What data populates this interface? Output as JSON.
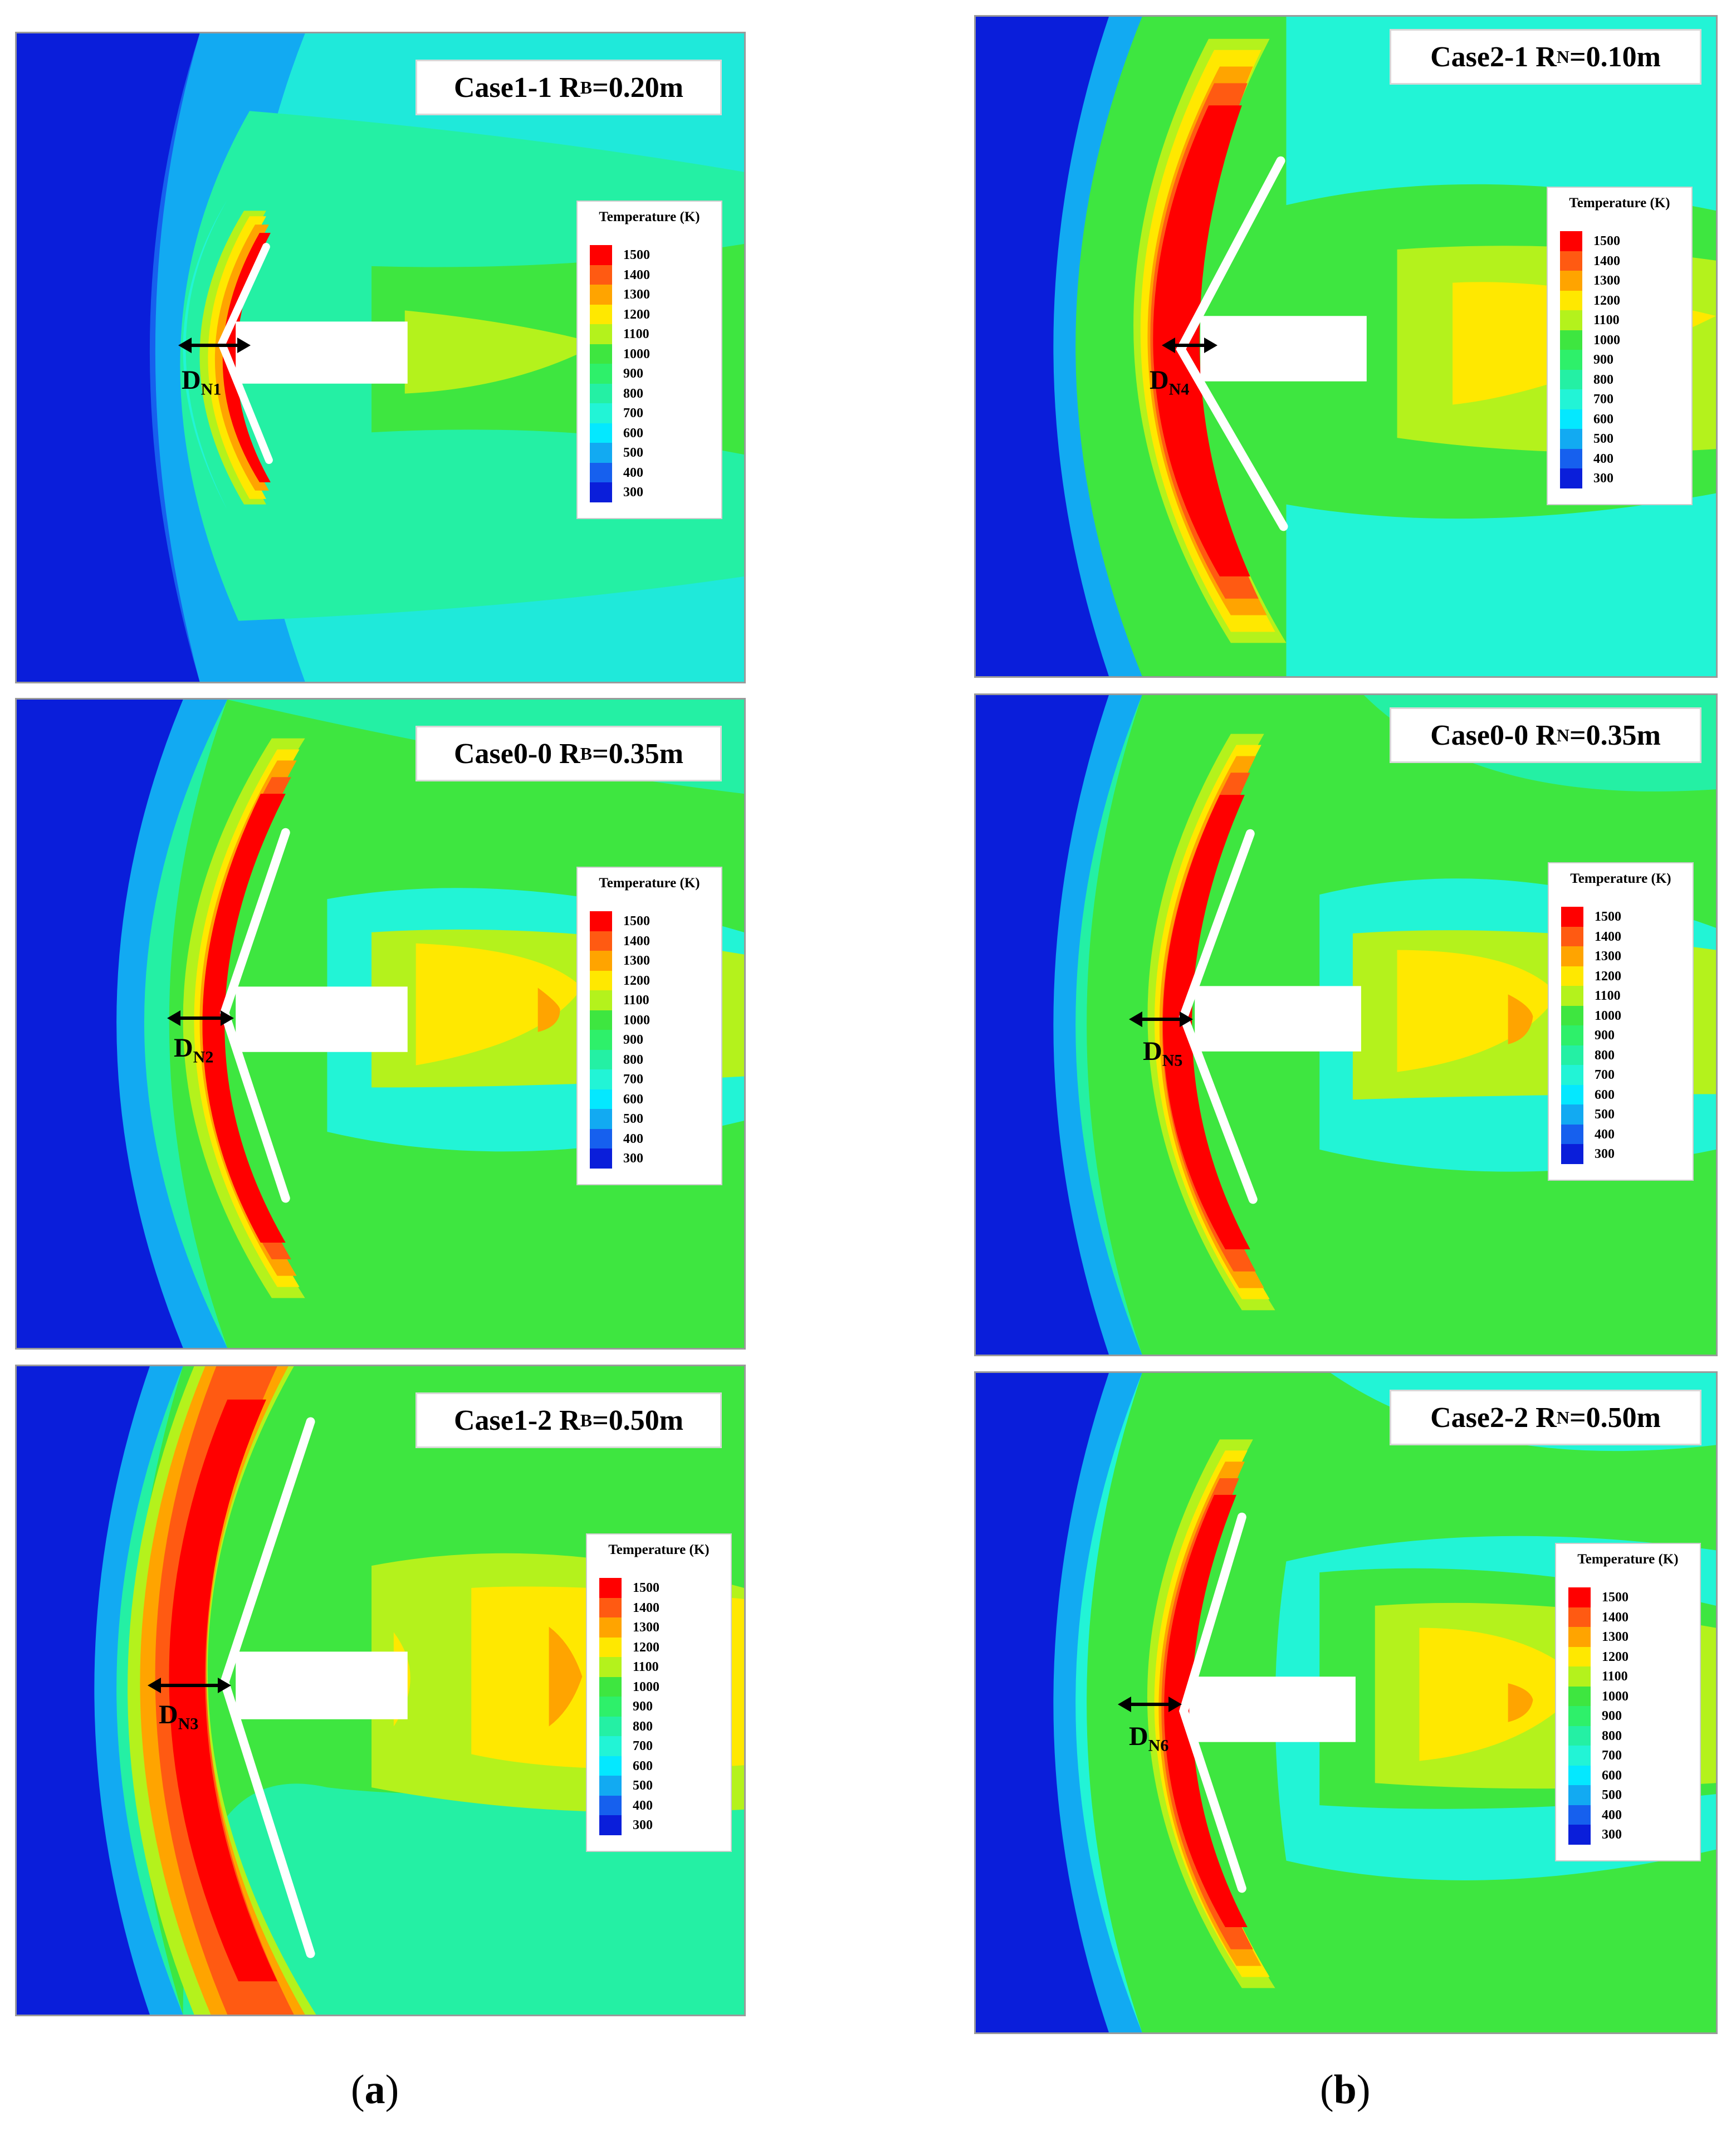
{
  "legend": {
    "title": "Temperature (K)",
    "levels": [
      "1500",
      "1400",
      "1300",
      "1200",
      "1100",
      "1000",
      "900",
      "800",
      "700",
      "600",
      "500",
      "400",
      "300"
    ],
    "colors": [
      "#ff0000",
      "#ff5a12",
      "#ffa400",
      "#ffe800",
      "#b4f21c",
      "#3ee640",
      "#2ef06a",
      "#24f0a4",
      "#22f4d6",
      "#04e8ff",
      "#12aaf2",
      "#1660ee",
      "#0a1eda"
    ]
  },
  "panels": [
    {
      "id": "case1-1",
      "title_main": "Case1-1 R",
      "title_sub": "B",
      "title_tail": "=0.20m",
      "d_main": "D",
      "d_sub": "N1"
    },
    {
      "id": "case0-0-a",
      "title_main": "Case0-0 R",
      "title_sub": "B",
      "title_tail": "=0.35m",
      "d_main": "D",
      "d_sub": "N2"
    },
    {
      "id": "case1-2",
      "title_main": "Case1-2 R",
      "title_sub": "B",
      "title_tail": "=0.50m",
      "d_main": "D",
      "d_sub": "N3"
    },
    {
      "id": "case2-1",
      "title_main": "Case2-1 R",
      "title_sub": "N",
      "title_tail": "=0.10m",
      "d_main": "D",
      "d_sub": "N4"
    },
    {
      "id": "case0-0-b",
      "title_main": "Case0-0 R",
      "title_sub": "N",
      "title_tail": "=0.35m",
      "d_main": "D",
      "d_sub": "N5"
    },
    {
      "id": "case2-2",
      "title_main": "Case2-2 R",
      "title_sub": "N",
      "title_tail": "=0.50m",
      "d_main": "D",
      "d_sub": "N6"
    }
  ],
  "captions": {
    "left": "a",
    "right": "b"
  }
}
